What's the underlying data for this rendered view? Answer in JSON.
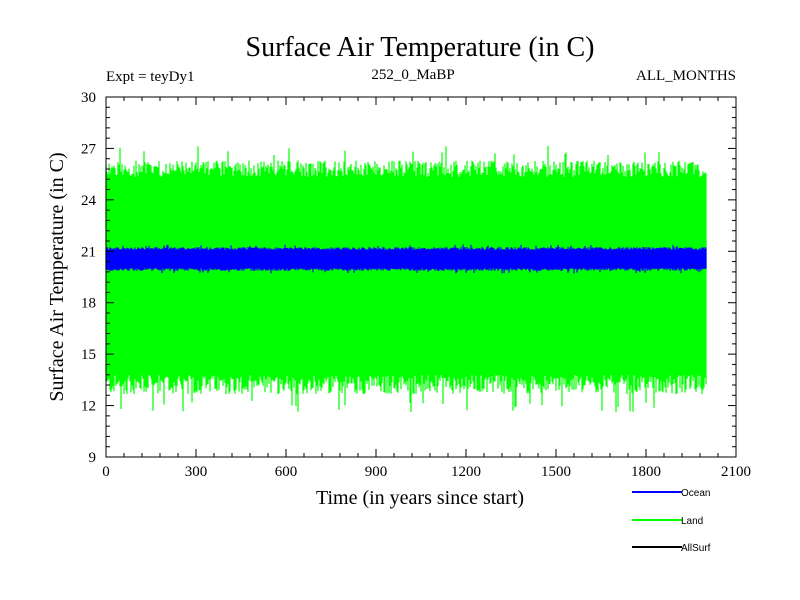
{
  "chart_data": {
    "type": "line",
    "title": "Surface Air Temperature (in C)",
    "subtitle_left": "Expt = teyDy1",
    "subtitle_center": "252_0_MaBP",
    "subtitle_right": "ALL_MONTHS",
    "xlabel": "Time (in years since start)",
    "ylabel": "Surface Air Temperature (in C)",
    "xlim": [
      0,
      2100
    ],
    "ylim": [
      9,
      30
    ],
    "x_ticks": [
      "0",
      "300",
      "600",
      "900",
      "1200",
      "1500",
      "1800",
      "2100"
    ],
    "y_ticks": [
      "9",
      "12",
      "15",
      "18",
      "21",
      "24",
      "27",
      "30"
    ],
    "x_data_range": [
      0,
      2000
    ],
    "series": [
      {
        "name": "Land",
        "color": "#00ff00",
        "min_value": 13.0,
        "max_value": 26.0,
        "extreme_low": 11.6,
        "extreme_high": 27.2
      },
      {
        "name": "Ocean",
        "color": "#0000ff",
        "min_value": 19.9,
        "max_value": 21.2,
        "extreme_low": 19.7,
        "extreme_high": 21.4
      },
      {
        "name": "AllSurf",
        "color": "#000000",
        "min_value": null,
        "max_value": null
      }
    ],
    "legend": {
      "position": "bottom-right",
      "entries": [
        "Ocean",
        "Land",
        "AllSurf"
      ]
    }
  }
}
